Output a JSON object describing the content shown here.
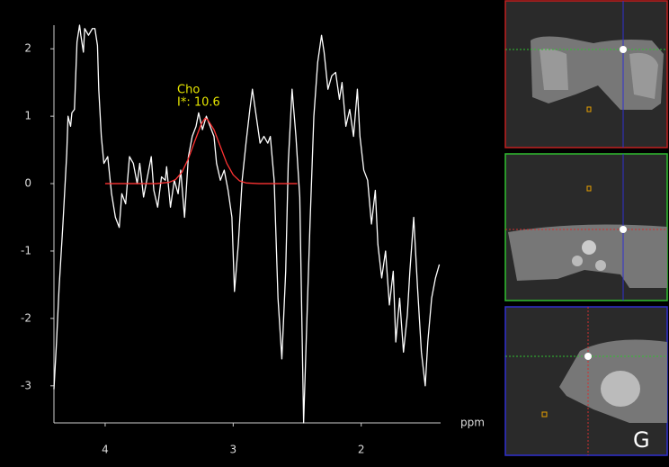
{
  "chart_data": {
    "type": "line",
    "series": [
      {
        "color": "#ffffff",
        "x": [
          4.4,
          4.38,
          4.36,
          4.33,
          4.3,
          4.29,
          4.27,
          4.26,
          4.24,
          4.22,
          4.2,
          4.19,
          4.17,
          4.16,
          4.13,
          4.1,
          4.08,
          4.06,
          4.05,
          4.03,
          4.01,
          3.98,
          3.95,
          3.92,
          3.89,
          3.87,
          3.84,
          3.81,
          3.78,
          3.75,
          3.73,
          3.7,
          3.67,
          3.64,
          3.62,
          3.59,
          3.56,
          3.53,
          3.52,
          3.49,
          3.46,
          3.43,
          3.41,
          3.38,
          3.35,
          3.32,
          3.29,
          3.27,
          3.24,
          3.21,
          3.18,
          3.15,
          3.13,
          3.1,
          3.07,
          3.04,
          3.01,
          2.99,
          2.96,
          2.93,
          2.9,
          2.87,
          2.85,
          2.82,
          2.79,
          2.76,
          2.73,
          2.71,
          2.68,
          2.65,
          2.62,
          2.59,
          2.57,
          2.54,
          2.51,
          2.48,
          2.45,
          2.43,
          2.4,
          2.37,
          2.34,
          2.31,
          2.29,
          2.26,
          2.23,
          2.2,
          2.17,
          2.15,
          2.12,
          2.09,
          2.06,
          2.03,
          2.01,
          1.98,
          1.95,
          1.92,
          1.89,
          1.87,
          1.84,
          1.81,
          1.78,
          1.75,
          1.73,
          1.7,
          1.67,
          1.64,
          1.62,
          1.59,
          1.56,
          1.53,
          1.5,
          1.48,
          1.45,
          1.42,
          1.39
        ],
        "values": [
          -3.05,
          -2.35,
          -1.55,
          -0.6,
          0.45,
          1.0,
          0.85,
          1.05,
          1.1,
          2.1,
          2.35,
          2.2,
          1.95,
          2.3,
          2.2,
          2.3,
          2.3,
          2.05,
          1.4,
          0.7,
          0.3,
          0.4,
          -0.15,
          -0.5,
          -0.65,
          -0.15,
          -0.3,
          0.4,
          0.3,
          0,
          0.3,
          -0.2,
          0.1,
          0.4,
          -0.1,
          -0.35,
          0.1,
          0.05,
          0.25,
          -0.35,
          0.05,
          -0.15,
          0.2,
          -0.5,
          0.4,
          0.7,
          0.85,
          1.05,
          0.8,
          1.0,
          0.85,
          0.7,
          0.3,
          0.05,
          0.2,
          -0.1,
          -0.5,
          -1.6,
          -0.9,
          0.05,
          0.6,
          1.1,
          1.4,
          1.0,
          0.6,
          0.7,
          0.6,
          0.7,
          0.05,
          -1.7,
          -2.6,
          -1.3,
          0.3,
          1.4,
          0.7,
          -0.2,
          -3.55,
          -2.35,
          -0.6,
          1.0,
          1.8,
          2.2,
          1.95,
          1.4,
          1.6,
          1.65,
          1.25,
          1.5,
          0.85,
          1.1,
          0.7,
          1.4,
          0.7,
          0.2,
          0.05,
          -0.6,
          -0.1,
          -0.9,
          -1.4,
          -1.0,
          -1.8,
          -1.3,
          -2.35,
          -1.7,
          -2.5,
          -1.95,
          -1.3,
          -0.5,
          -1.55,
          -2.5,
          -3.0,
          -2.35,
          -1.7,
          -1.4,
          -1.2
        ]
      },
      {
        "color": "#ff3333",
        "x": [
          4.0,
          3.6,
          3.5,
          3.45,
          3.4,
          3.35,
          3.3,
          3.25,
          3.22,
          3.2,
          3.15,
          3.1,
          3.05,
          3.0,
          2.95,
          2.9,
          2.8,
          2.5
        ],
        "values": [
          0,
          0,
          0.02,
          0.06,
          0.17,
          0.37,
          0.63,
          0.88,
          0.97,
          0.95,
          0.8,
          0.55,
          0.3,
          0.13,
          0.04,
          0.01,
          0,
          0
        ]
      }
    ],
    "xlim": [
      4.4,
      1.38
    ],
    "xticks": [
      4,
      3,
      2
    ],
    "xlabel": "ppm",
    "ylim": [
      -3.55,
      2.35
    ],
    "yticks": [
      2,
      1,
      0,
      -1,
      -2,
      -3
    ],
    "annotations": [
      "Cho",
      "I*: 10.6"
    ],
    "annotation_color": "#e6e600"
  },
  "panel_label": "G"
}
